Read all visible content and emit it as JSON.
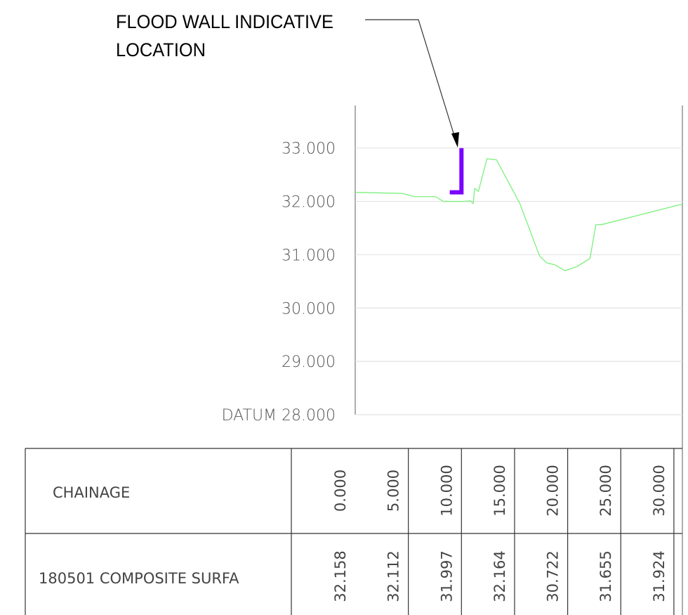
{
  "chart_data": {
    "type": "line",
    "annotation": [
      "FLOOD WALL INDICATIVE",
      "LOCATION"
    ],
    "xlim": [
      0,
      30.8
    ],
    "ylim": [
      28,
      33.8
    ],
    "yticks": [
      {
        "value": 28,
        "label": "DATUM 28.000"
      },
      {
        "value": 29,
        "label": "29.000"
      },
      {
        "value": 30,
        "label": "30.000"
      },
      {
        "value": 31,
        "label": "31.000"
      },
      {
        "value": 32,
        "label": "32.000"
      },
      {
        "value": 33,
        "label": "33.000"
      }
    ],
    "xticks": [
      {
        "value": 0,
        "label": "0.000"
      },
      {
        "value": 5,
        "label": "5.000"
      },
      {
        "value": 10,
        "label": "10.000"
      },
      {
        "value": 15,
        "label": "15.000"
      },
      {
        "value": 20,
        "label": "20.000"
      },
      {
        "value": 25,
        "label": "25.000"
      },
      {
        "value": 30,
        "label": "30.000"
      }
    ],
    "grid": true,
    "series": [
      {
        "color": "#7cf07c",
        "x": [
          0,
          2.25,
          4.4,
          5.6,
          7.55,
          8.3,
          10.2,
          10.85,
          11.1,
          11.25,
          11.6,
          12.4,
          13.3,
          15.5,
          17.35,
          18.0,
          18.8,
          19.75,
          20.9,
          22.1,
          22.65,
          23.3,
          30.8
        ],
        "values": [
          32.17,
          32.16,
          32.15,
          32.09,
          32.09,
          32.0,
          32.0,
          32.01,
          31.96,
          32.24,
          32.19,
          32.8,
          32.78,
          31.96,
          30.98,
          30.85,
          30.81,
          30.7,
          30.78,
          30.93,
          31.56,
          31.57,
          31.95
        ]
      },
      {
        "color": "#7a00ff",
        "x": [
          10.0,
          10.0,
          8.9
        ],
        "values": [
          33.0,
          32.17,
          32.17
        ]
      }
    ],
    "row_labels": [
      "CHAINAGE",
      "180501 COMPOSITE SURFA"
    ],
    "surface_values": [
      32.158,
      32.112,
      31.997,
      32.164,
      30.722,
      31.655,
      31.924
    ]
  }
}
